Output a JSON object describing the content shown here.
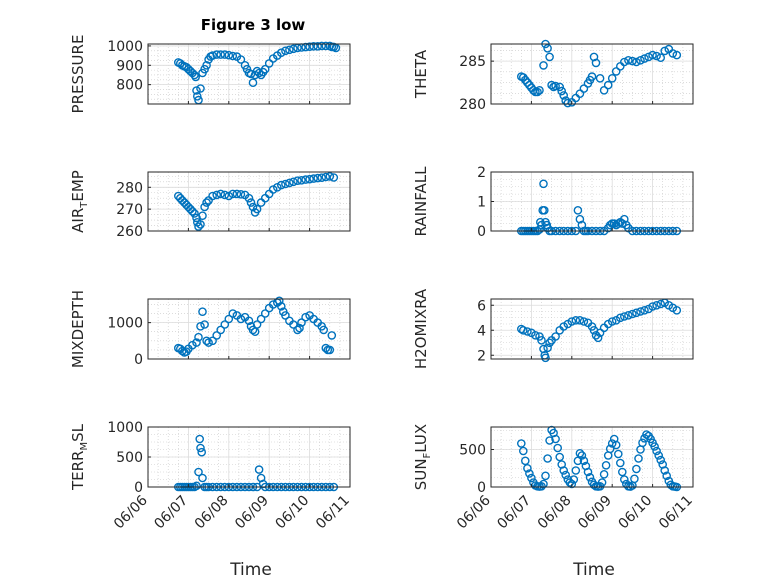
{
  "figure": {
    "title": "Figure 3 low",
    "xlabel": "Time",
    "x_ticks": [
      "06/06",
      "06/07",
      "06/08",
      "06/09",
      "06/10",
      "06/11"
    ],
    "marker_color": "#0072BD"
  },
  "chart_data": [
    {
      "type": "scatter",
      "title": "Figure 3 low",
      "ylabel": "PRESSURE",
      "xlim": [
        "06/06",
        "06/11"
      ],
      "ylim": [
        700,
        1010
      ],
      "yticks": [
        {
          "v": 800,
          "label": "800"
        },
        {
          "v": 900,
          "label": "900"
        },
        {
          "v": 1000,
          "label": "1000"
        }
      ],
      "x": [
        6.75,
        6.8,
        6.85,
        6.9,
        6.95,
        7.0,
        7.05,
        7.1,
        7.15,
        7.18,
        7.2,
        7.22,
        7.25,
        7.3,
        7.35,
        7.4,
        7.45,
        7.5,
        7.55,
        7.6,
        7.7,
        7.8,
        7.9,
        8.0,
        8.1,
        8.2,
        8.3,
        8.4,
        8.45,
        8.5,
        8.55,
        8.6,
        8.65,
        8.7,
        8.75,
        8.8,
        8.85,
        8.9,
        9.0,
        9.1,
        9.2,
        9.3,
        9.4,
        9.5,
        9.6,
        9.7,
        9.8,
        9.9,
        10.0,
        10.1,
        10.2,
        10.3,
        10.4,
        10.5,
        10.55,
        10.6,
        10.65
      ],
      "y": [
        915,
        910,
        900,
        895,
        890,
        880,
        870,
        860,
        850,
        840,
        770,
        740,
        720,
        780,
        860,
        880,
        900,
        930,
        945,
        950,
        955,
        955,
        955,
        952,
        948,
        945,
        930,
        900,
        880,
        860,
        855,
        810,
        850,
        870,
        860,
        850,
        865,
        880,
        910,
        935,
        950,
        965,
        975,
        980,
        985,
        990,
        992,
        994,
        996,
        998,
        998,
        1000,
        1000,
        1000,
        995,
        995,
        990
      ]
    },
    {
      "type": "scatter",
      "ylabel": "THETA",
      "xlim": [
        "06/06",
        "06/11"
      ],
      "ylim": [
        280,
        287
      ],
      "yticks": [
        {
          "v": 280,
          "label": "280"
        },
        {
          "v": 285,
          "label": "285"
        }
      ],
      "x": [
        6.75,
        6.8,
        6.85,
        6.9,
        6.95,
        7.0,
        7.05,
        7.1,
        7.15,
        7.2,
        7.3,
        7.35,
        7.4,
        7.45,
        7.5,
        7.55,
        7.6,
        7.7,
        7.75,
        7.8,
        7.85,
        7.9,
        8.0,
        8.1,
        8.2,
        8.3,
        8.4,
        8.45,
        8.5,
        8.55,
        8.6,
        8.7,
        8.8,
        8.9,
        9.0,
        9.1,
        9.2,
        9.3,
        9.4,
        9.5,
        9.6,
        9.7,
        9.8,
        9.9,
        10.0,
        10.1,
        10.2,
        10.3,
        10.4,
        10.5,
        10.6
      ],
      "y": [
        283.2,
        283.1,
        282.8,
        282.5,
        282.2,
        281.9,
        281.6,
        281.4,
        281.4,
        281.6,
        284.5,
        287.0,
        286.5,
        285.5,
        282.2,
        282.0,
        282.1,
        282.0,
        281.5,
        281.0,
        280.4,
        280.1,
        280.2,
        280.7,
        281.2,
        281.8,
        282.4,
        282.8,
        283.2,
        285.5,
        284.8,
        283.0,
        281.6,
        282.2,
        283.0,
        283.8,
        284.4,
        284.9,
        285.1,
        285.0,
        284.9,
        285.1,
        285.3,
        285.5,
        285.7,
        285.6,
        285.4,
        286.2,
        286.4,
        285.9,
        285.7
      ]
    },
    {
      "type": "scatter",
      "ylabel": "AIR_TEMP",
      "xlim": [
        "06/06",
        "06/11"
      ],
      "ylim": [
        260,
        287
      ],
      "yticks": [
        {
          "v": 260,
          "label": "260"
        },
        {
          "v": 270,
          "label": "270"
        },
        {
          "v": 280,
          "label": "280"
        }
      ],
      "x": [
        6.75,
        6.8,
        6.85,
        6.9,
        6.95,
        7.0,
        7.05,
        7.1,
        7.15,
        7.2,
        7.22,
        7.25,
        7.3,
        7.35,
        7.4,
        7.45,
        7.5,
        7.6,
        7.7,
        7.8,
        7.9,
        8.0,
        8.1,
        8.2,
        8.3,
        8.4,
        8.5,
        8.55,
        8.6,
        8.65,
        8.7,
        8.8,
        8.9,
        9.0,
        9.1,
        9.2,
        9.3,
        9.4,
        9.5,
        9.6,
        9.7,
        9.8,
        9.9,
        10.0,
        10.1,
        10.2,
        10.3,
        10.4,
        10.5,
        10.6
      ],
      "y": [
        276,
        275,
        274,
        273,
        272,
        271,
        270,
        269,
        268,
        266,
        264,
        262,
        263,
        267,
        271,
        273,
        274,
        276,
        276.5,
        277,
        276.5,
        276,
        277,
        277,
        276.8,
        276.5,
        275,
        273,
        271,
        268.5,
        270,
        273,
        275,
        277,
        279,
        280,
        281,
        281.5,
        282,
        282.5,
        283,
        283.2,
        283.5,
        283.7,
        284,
        284.2,
        284.4,
        284.7,
        285,
        284.5
      ]
    },
    {
      "type": "scatter",
      "ylabel": "RAINFALL",
      "xlim": [
        "06/06",
        "06/11"
      ],
      "ylim": [
        0,
        2
      ],
      "yticks": [
        {
          "v": 0,
          "label": "0"
        },
        {
          "v": 1,
          "label": "1"
        },
        {
          "v": 2,
          "label": "2"
        }
      ],
      "x": [
        6.75,
        6.8,
        6.85,
        6.9,
        6.95,
        7.0,
        7.05,
        7.1,
        7.15,
        7.2,
        7.22,
        7.25,
        7.28,
        7.3,
        7.32,
        7.35,
        7.38,
        7.4,
        7.45,
        7.5,
        7.6,
        7.7,
        7.8,
        7.9,
        8.0,
        8.1,
        8.15,
        8.2,
        8.25,
        8.3,
        8.35,
        8.4,
        8.5,
        8.6,
        8.7,
        8.8,
        8.9,
        8.95,
        9.0,
        9.05,
        9.1,
        9.15,
        9.2,
        9.25,
        9.3,
        9.35,
        9.4,
        9.5,
        9.6,
        9.7,
        9.8,
        9.9,
        10.0,
        10.1,
        10.2,
        10.3,
        10.4,
        10.5,
        10.6
      ],
      "y": [
        0,
        0,
        0,
        0,
        0,
        0,
        0,
        0,
        0,
        0.05,
        0.3,
        0.2,
        0.7,
        1.6,
        0.7,
        0.3,
        0.2,
        0.1,
        0,
        0,
        0,
        0,
        0,
        0,
        0,
        0,
        0.7,
        0.4,
        0.2,
        0,
        0,
        0,
        0,
        0,
        0,
        0,
        0.1,
        0.2,
        0.25,
        0.25,
        0.2,
        0.25,
        0.3,
        0.25,
        0.4,
        0.2,
        0.1,
        0,
        0,
        0,
        0,
        0,
        0,
        0,
        0,
        0,
        0,
        0,
        0
      ]
    },
    {
      "type": "scatter",
      "ylabel": "MIXDEPTH",
      "xlim": [
        "06/06",
        "06/11"
      ],
      "ylim": [
        0,
        1650
      ],
      "yticks": [
        {
          "v": 0,
          "label": "0"
        },
        {
          "v": 1000,
          "label": "1000"
        }
      ],
      "x": [
        6.75,
        6.8,
        6.85,
        6.9,
        6.95,
        7.0,
        7.1,
        7.2,
        7.25,
        7.3,
        7.35,
        7.4,
        7.45,
        7.5,
        7.6,
        7.7,
        7.8,
        7.9,
        8.0,
        8.1,
        8.2,
        8.3,
        8.4,
        8.5,
        8.55,
        8.6,
        8.65,
        8.7,
        8.8,
        8.9,
        9.0,
        9.1,
        9.2,
        9.25,
        9.3,
        9.35,
        9.4,
        9.5,
        9.6,
        9.7,
        9.75,
        9.8,
        9.9,
        10.0,
        10.1,
        10.2,
        10.3,
        10.35,
        10.4,
        10.45,
        10.5,
        10.55
      ],
      "y": [
        300,
        280,
        220,
        180,
        200,
        280,
        380,
        450,
        600,
        900,
        1300,
        950,
        500,
        450,
        500,
        650,
        800,
        950,
        1100,
        1250,
        1200,
        1100,
        1150,
        1050,
        900,
        800,
        750,
        950,
        1100,
        1250,
        1400,
        1500,
        1550,
        1600,
        1450,
        1300,
        1200,
        1050,
        950,
        800,
        850,
        1000,
        1150,
        1200,
        1100,
        1000,
        900,
        800,
        300,
        250,
        250,
        650
      ]
    },
    {
      "type": "scatter",
      "ylabel": "H2OMIXRA",
      "xlim": [
        "06/06",
        "06/11"
      ],
      "ylim": [
        1.7,
        6.5
      ],
      "yticks": [
        {
          "v": 2,
          "label": "2"
        },
        {
          "v": 4,
          "label": "4"
        },
        {
          "v": 6,
          "label": "6"
        }
      ],
      "x": [
        6.75,
        6.8,
        6.9,
        7.0,
        7.1,
        7.2,
        7.25,
        7.3,
        7.33,
        7.35,
        7.4,
        7.45,
        7.5,
        7.6,
        7.7,
        7.8,
        7.9,
        8.0,
        8.1,
        8.2,
        8.3,
        8.4,
        8.5,
        8.55,
        8.6,
        8.65,
        8.7,
        8.8,
        8.9,
        9.0,
        9.1,
        9.2,
        9.3,
        9.4,
        9.5,
        9.6,
        9.7,
        9.8,
        9.9,
        10.0,
        10.1,
        10.2,
        10.3,
        10.4,
        10.5,
        10.6
      ],
      "y": [
        4.1,
        4.0,
        3.9,
        3.8,
        3.6,
        3.5,
        3.2,
        2.5,
        2.0,
        1.8,
        2.6,
        3.0,
        3.2,
        3.5,
        4.0,
        4.3,
        4.5,
        4.7,
        4.8,
        4.8,
        4.7,
        4.6,
        4.3,
        4.0,
        3.6,
        3.4,
        3.8,
        4.2,
        4.5,
        4.7,
        4.8,
        5.0,
        5.1,
        5.2,
        5.3,
        5.4,
        5.5,
        5.6,
        5.7,
        5.9,
        6.0,
        6.1,
        6.2,
        6.0,
        5.8,
        5.6
      ]
    },
    {
      "type": "scatter",
      "ylabel": "TERR_MSL",
      "xlim": [
        "06/06",
        "06/11"
      ],
      "ylim": [
        0,
        1000
      ],
      "yticks": [
        {
          "v": 0,
          "label": "0"
        },
        {
          "v": 500,
          "label": "500"
        },
        {
          "v": 1000,
          "label": "1000"
        }
      ],
      "x": [
        6.75,
        6.8,
        6.85,
        6.9,
        6.95,
        7.0,
        7.05,
        7.1,
        7.15,
        7.2,
        7.25,
        7.28,
        7.3,
        7.33,
        7.35,
        7.4,
        7.45,
        7.5,
        7.6,
        7.7,
        7.8,
        7.9,
        8.0,
        8.1,
        8.2,
        8.3,
        8.4,
        8.5,
        8.6,
        8.7,
        8.75,
        8.8,
        8.85,
        8.9,
        9.0,
        9.1,
        9.2,
        9.3,
        9.4,
        9.5,
        9.6,
        9.7,
        9.8,
        9.9,
        10.0,
        10.1,
        10.2,
        10.3,
        10.4,
        10.5,
        10.6
      ],
      "y": [
        0,
        0,
        0,
        0,
        0,
        0,
        0,
        0,
        0,
        20,
        250,
        800,
        650,
        580,
        150,
        0,
        0,
        0,
        0,
        0,
        0,
        0,
        0,
        0,
        0,
        0,
        0,
        0,
        0,
        0,
        290,
        150,
        50,
        0,
        0,
        0,
        0,
        0,
        0,
        0,
        0,
        0,
        0,
        0,
        0,
        0,
        0,
        0,
        0,
        0,
        0
      ]
    },
    {
      "type": "scatter",
      "ylabel": "SUN_FLUX",
      "xlim": [
        "06/06",
        "06/11"
      ],
      "ylim": [
        0,
        800
      ],
      "yticks": [
        {
          "v": 0,
          "label": "0"
        },
        {
          "v": 500,
          "label": "500"
        }
      ],
      "x": [
        6.75,
        6.8,
        6.85,
        6.9,
        6.95,
        7.0,
        7.05,
        7.1,
        7.15,
        7.2,
        7.25,
        7.3,
        7.35,
        7.4,
        7.45,
        7.5,
        7.55,
        7.6,
        7.65,
        7.7,
        7.75,
        7.8,
        7.85,
        7.9,
        7.95,
        8.0,
        8.05,
        8.1,
        8.15,
        8.2,
        8.25,
        8.3,
        8.35,
        8.4,
        8.45,
        8.5,
        8.55,
        8.6,
        8.65,
        8.7,
        8.75,
        8.8,
        8.85,
        8.9,
        8.95,
        9.0,
        9.05,
        9.1,
        9.15,
        9.2,
        9.25,
        9.3,
        9.35,
        9.4,
        9.45,
        9.5,
        9.55,
        9.6,
        9.65,
        9.7,
        9.75,
        9.8,
        9.85,
        9.9,
        9.95,
        10.0,
        10.05,
        10.1,
        10.15,
        10.2,
        10.25,
        10.3,
        10.35,
        10.4,
        10.45,
        10.5,
        10.55,
        10.6
      ],
      "y": [
        580,
        480,
        350,
        250,
        180,
        120,
        60,
        20,
        10,
        5,
        10,
        40,
        150,
        380,
        620,
        760,
        720,
        640,
        520,
        400,
        300,
        220,
        160,
        100,
        60,
        40,
        100,
        220,
        350,
        450,
        420,
        350,
        280,
        200,
        130,
        70,
        30,
        10,
        5,
        10,
        60,
        170,
        290,
        420,
        510,
        580,
        640,
        560,
        440,
        320,
        200,
        100,
        40,
        10,
        5,
        20,
        110,
        240,
        380,
        500,
        590,
        650,
        700,
        680,
        640,
        590,
        540,
        480,
        420,
        360,
        300,
        220,
        150,
        80,
        30,
        10,
        5,
        0
      ]
    }
  ]
}
